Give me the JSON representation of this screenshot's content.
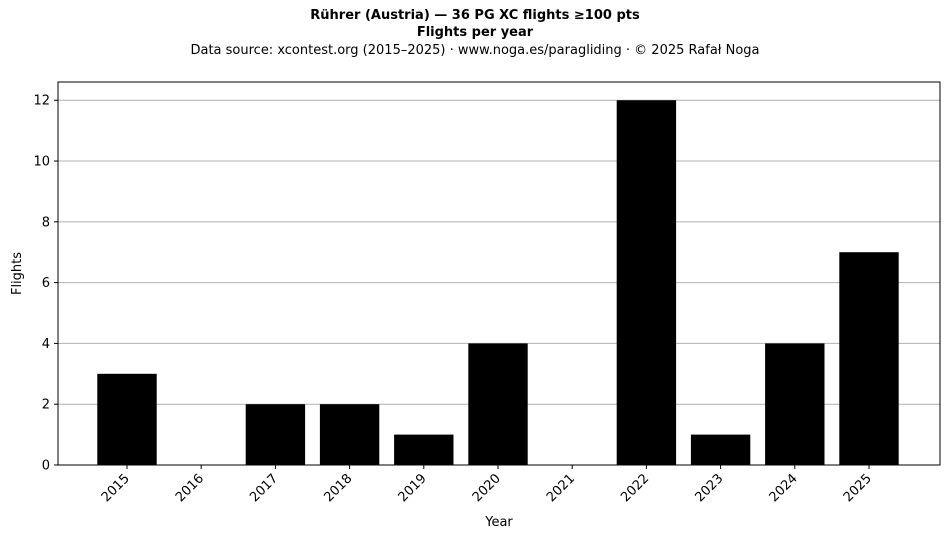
{
  "chart_data": {
    "type": "bar",
    "title": "Rührer (Austria)  —  36 PG XC flights ≥100 pts",
    "subtitle": "Flights per year",
    "source_note": "Data source: xcontest.org (2015–2025)  ·  www.noga.es/paragliding  ·  © 2025 Rafał Noga",
    "xlabel": "Year",
    "ylabel": "Flights",
    "categories": [
      "2015",
      "2016",
      "2017",
      "2018",
      "2019",
      "2020",
      "2021",
      "2022",
      "2023",
      "2024",
      "2025"
    ],
    "values": [
      3,
      0,
      2,
      2,
      1,
      4,
      0,
      12,
      1,
      4,
      7
    ],
    "ylim": [
      0,
      12.6
    ],
    "yticks": [
      0,
      2,
      4,
      6,
      8,
      10,
      12
    ],
    "grid": "y",
    "bar_color": "#000000",
    "grid_color": "#b0b0b0"
  }
}
